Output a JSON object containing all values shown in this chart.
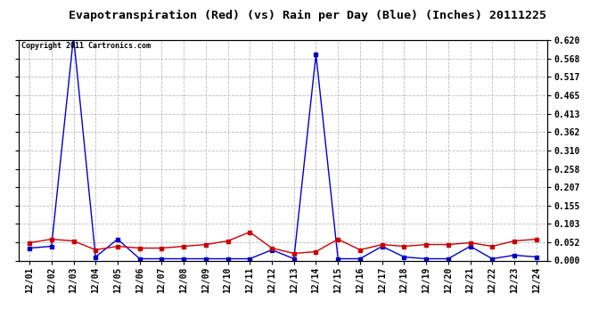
{
  "title": "Evapotranspiration (Red) (vs) Rain per Day (Blue) (Inches) 20111225",
  "copyright_text": "Copyright 2011 Cartronics.com",
  "x_labels": [
    "12/01",
    "12/02",
    "12/03",
    "12/04",
    "12/05",
    "12/06",
    "12/07",
    "12/08",
    "12/09",
    "12/10",
    "12/11",
    "12/12",
    "12/13",
    "12/14",
    "12/15",
    "12/16",
    "12/17",
    "12/18",
    "12/19",
    "12/20",
    "12/21",
    "12/22",
    "12/23",
    "12/24"
  ],
  "blue_data": [
    0.035,
    0.04,
    0.63,
    0.01,
    0.06,
    0.005,
    0.005,
    0.005,
    0.005,
    0.005,
    0.005,
    0.03,
    0.005,
    0.58,
    0.005,
    0.005,
    0.04,
    0.01,
    0.005,
    0.005,
    0.04,
    0.005,
    0.015,
    0.01
  ],
  "red_data": [
    0.05,
    0.06,
    0.055,
    0.03,
    0.04,
    0.035,
    0.035,
    0.04,
    0.045,
    0.055,
    0.08,
    0.035,
    0.02,
    0.025,
    0.06,
    0.03,
    0.045,
    0.04,
    0.045,
    0.045,
    0.05,
    0.04,
    0.055,
    0.06
  ],
  "ylim": [
    0.0,
    0.62
  ],
  "yticks": [
    0.0,
    0.052,
    0.103,
    0.155,
    0.207,
    0.258,
    0.31,
    0.362,
    0.413,
    0.465,
    0.517,
    0.568,
    0.62
  ],
  "blue_color": "#0000cc",
  "red_color": "#cc0000",
  "bg_color": "#ffffff",
  "grid_color": "#bbbbbb",
  "title_fontsize": 9.5,
  "copyright_fontsize": 6,
  "tick_fontsize": 7,
  "marker": "s",
  "marker_size": 2.5,
  "linewidth": 1.0
}
